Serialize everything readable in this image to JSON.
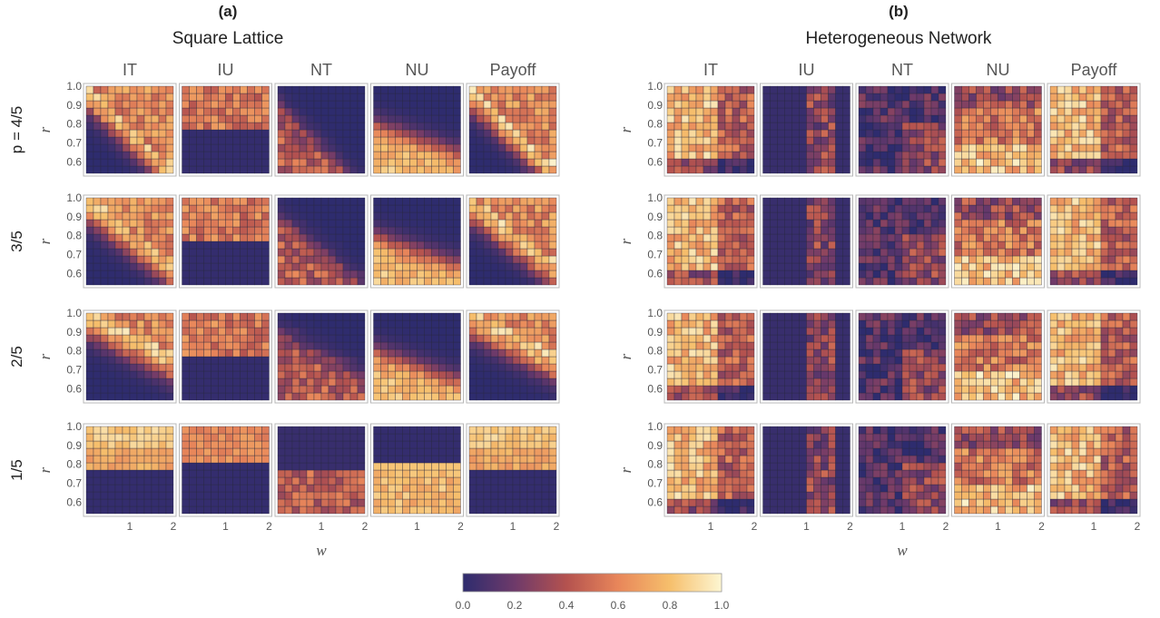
{
  "chart_data": {
    "type": "heatmap",
    "panels": [
      {
        "letter": "(a)",
        "title": "Square Lattice"
      },
      {
        "letter": "(b)",
        "title": "Heterogeneous Network"
      }
    ],
    "columns": [
      "IT",
      "IU",
      "NT",
      "NU",
      "Payoff"
    ],
    "row_labels": [
      "4/5",
      "3/5",
      "2/5",
      "1/5"
    ],
    "row_label_prefix": "p = ",
    "xlabel": "w",
    "ylabel": "r",
    "x_range": [
      0,
      2
    ],
    "y_range": [
      0.54,
      1.0
    ],
    "xticks": [
      1,
      2
    ],
    "yticks": [
      {
        "v": 0.6,
        "t": "0.6"
      },
      {
        "v": 0.7,
        "t": "0.7"
      },
      {
        "v": 0.8,
        "t": "0.8"
      },
      {
        "v": 0.9,
        "t": "0.9"
      },
      {
        "v": 1.0,
        "t": "1.0"
      }
    ],
    "grid_cells": 12,
    "colorbar": {
      "ticks": [
        "0.0",
        "0.2",
        "0.4",
        "0.6",
        "0.8",
        "1.0"
      ],
      "colors": [
        "#2e2c6e",
        "#6e3a6a",
        "#b4524f",
        "#e8865a",
        "#f6bf6c",
        "#fdf6d2"
      ]
    }
  }
}
